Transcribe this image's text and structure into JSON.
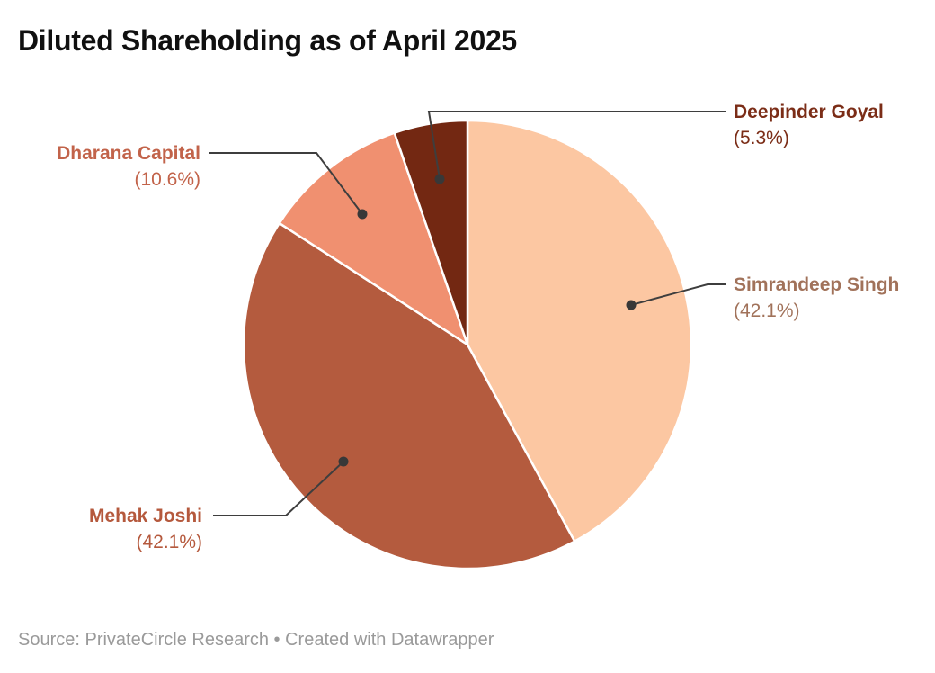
{
  "title": "Diluted Shareholding as of April 2025",
  "footer": {
    "text": "Source: PrivateCircle Research • Created with Datawrapper"
  },
  "chart_data": {
    "type": "pie",
    "title": "Diluted Shareholding as of April 2025",
    "unit": "%",
    "start_angle_deg": 0,
    "direction": "clockwise",
    "background": "#ffffff",
    "leader_line_color": "#3e3e3e",
    "leader_dot_color": "#383838",
    "slice_border_color": "#ffffff",
    "slices": [
      {
        "label": "Simrandeep Singh",
        "value": 42.1,
        "display": "(42.1%)",
        "color": "#fcc7a2",
        "label_color": "#a1725a"
      },
      {
        "label": "Mehak Joshi",
        "value": 42.1,
        "display": "(42.1%)",
        "color": "#b45b3e",
        "label_color": "#b5593d"
      },
      {
        "label": "Dharana Capital",
        "value": 10.6,
        "display": "(10.6%)",
        "color": "#f09070",
        "label_color": "#c2634a"
      },
      {
        "label": "Deepinder Goyal",
        "value": 5.3,
        "display": "(5.3%)",
        "color": "#732812",
        "label_color": "#7b2d17"
      }
    ]
  }
}
